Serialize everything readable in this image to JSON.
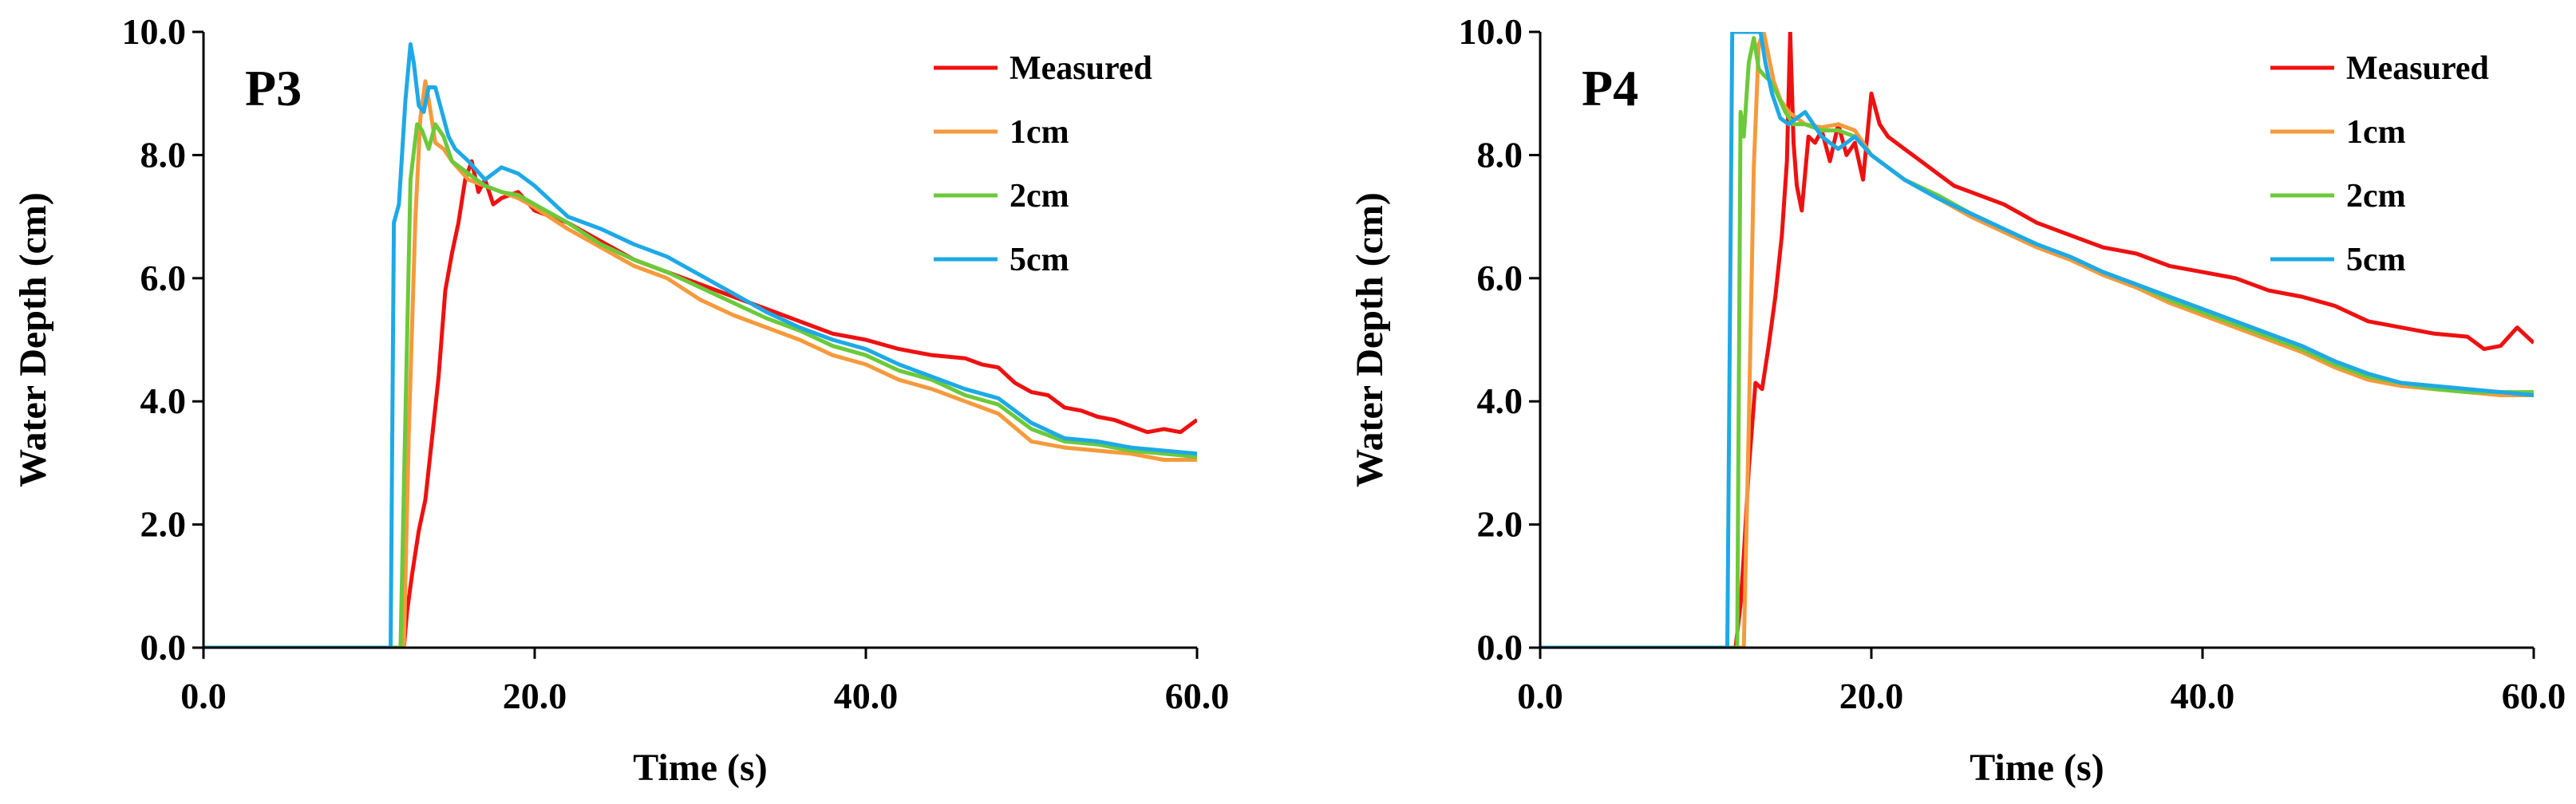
{
  "chart_data": [
    {
      "type": "line",
      "title": "P3",
      "xlabel": "Time (s)",
      "ylabel": "Water Depth (cm)",
      "xlim": [
        0,
        60
      ],
      "ylim": [
        0,
        10
      ],
      "xticks": [
        "0.0",
        "20.0",
        "40.0",
        "60.0"
      ],
      "yticks": [
        "0.0",
        "2.0",
        "4.0",
        "6.0",
        "8.0",
        "10.0"
      ],
      "grid": false,
      "legend_position": "top-right",
      "series": [
        {
          "name": "Measured",
          "color": "#ee1111",
          "x": [
            0,
            11.5,
            12.1,
            12.3,
            12.6,
            13.0,
            13.4,
            13.8,
            14.2,
            14.6,
            15.0,
            15.4,
            15.8,
            16.2,
            16.6,
            17.0,
            17.5,
            18,
            19,
            20,
            21,
            22,
            24,
            26,
            28,
            30,
            32,
            34,
            36,
            38,
            40,
            42,
            44,
            46,
            47,
            48,
            49,
            50,
            51,
            52,
            53,
            54,
            55,
            56,
            57,
            58,
            59,
            60
          ],
          "y": [
            0,
            0,
            0,
            0.6,
            1.2,
            1.9,
            2.4,
            3.4,
            4.4,
            5.8,
            6.4,
            6.9,
            7.6,
            7.9,
            7.4,
            7.6,
            7.2,
            7.3,
            7.4,
            7.1,
            7.0,
            6.9,
            6.6,
            6.3,
            6.1,
            5.9,
            5.7,
            5.5,
            5.3,
            5.1,
            5.0,
            4.85,
            4.75,
            4.7,
            4.6,
            4.55,
            4.3,
            4.15,
            4.1,
            3.9,
            3.85,
            3.75,
            3.7,
            3.6,
            3.5,
            3.55,
            3.5,
            3.7
          ]
        },
        {
          "name": "1cm",
          "color": "#f59a3c",
          "x": [
            0,
            11.8,
            12.1,
            12.4,
            12.8,
            13.1,
            13.4,
            13.6,
            14.0,
            14.5,
            15,
            16,
            17,
            18,
            19,
            20,
            22,
            24,
            26,
            28,
            30,
            32,
            34,
            36,
            38,
            40,
            42,
            44,
            46,
            48,
            50,
            52,
            54,
            56,
            58,
            60
          ],
          "y": [
            0,
            0,
            0,
            3.5,
            7.0,
            8.6,
            9.2,
            8.9,
            8.2,
            8.1,
            7.9,
            7.6,
            7.5,
            7.4,
            7.3,
            7.15,
            6.8,
            6.5,
            6.2,
            6.0,
            5.65,
            5.4,
            5.2,
            5.0,
            4.75,
            4.6,
            4.35,
            4.2,
            4.0,
            3.8,
            3.35,
            3.25,
            3.2,
            3.15,
            3.05,
            3.05
          ]
        },
        {
          "name": "2cm",
          "color": "#6cc93a",
          "x": [
            0,
            11.6,
            11.9,
            12.2,
            12.5,
            12.9,
            13.2,
            13.6,
            14.0,
            14.5,
            15,
            16,
            17,
            18,
            19,
            20,
            22,
            24,
            26,
            28,
            30,
            32,
            34,
            36,
            38,
            40,
            42,
            44,
            46,
            48,
            50,
            52,
            54,
            56,
            58,
            60
          ],
          "y": [
            0,
            0,
            0,
            3.8,
            7.6,
            8.5,
            8.4,
            8.1,
            8.5,
            8.3,
            7.9,
            7.7,
            7.5,
            7.4,
            7.35,
            7.2,
            6.9,
            6.55,
            6.3,
            6.1,
            5.85,
            5.6,
            5.35,
            5.15,
            4.9,
            4.75,
            4.5,
            4.35,
            4.1,
            3.95,
            3.55,
            3.35,
            3.3,
            3.2,
            3.15,
            3.1
          ]
        },
        {
          "name": "5cm",
          "color": "#1ea9e6",
          "x": [
            0,
            11.3,
            11.5,
            11.8,
            12.2,
            12.5,
            12.7,
            13.0,
            13.3,
            13.6,
            14.0,
            14.4,
            14.8,
            15.2,
            16,
            17,
            18,
            19,
            20,
            22,
            24,
            26,
            28,
            30,
            32,
            34,
            36,
            38,
            40,
            42,
            44,
            46,
            48,
            50,
            52,
            54,
            56,
            58,
            60
          ],
          "y": [
            0,
            0,
            6.9,
            7.2,
            8.9,
            9.8,
            9.5,
            8.8,
            8.7,
            9.1,
            9.1,
            8.7,
            8.3,
            8.1,
            7.9,
            7.6,
            7.8,
            7.7,
            7.5,
            7.0,
            6.8,
            6.55,
            6.35,
            6.05,
            5.75,
            5.45,
            5.2,
            5.0,
            4.85,
            4.6,
            4.4,
            4.2,
            4.05,
            3.65,
            3.4,
            3.35,
            3.25,
            3.2,
            3.15
          ]
        }
      ]
    },
    {
      "type": "line",
      "title": "P4",
      "xlabel": "Time (s)",
      "ylabel": "Water Depth (cm)",
      "xlim": [
        0,
        60
      ],
      "ylim": [
        0,
        10
      ],
      "xticks": [
        "0.0",
        "20.0",
        "40.0",
        "60.0"
      ],
      "yticks": [
        "0.0",
        "2.0",
        "4.0",
        "6.0",
        "8.0",
        "10.0"
      ],
      "grid": false,
      "legend_position": "top-right",
      "series": [
        {
          "name": "Measured",
          "color": "#ee1111",
          "x": [
            0,
            11.8,
            12.1,
            12.3,
            12.6,
            13.0,
            13.4,
            13.8,
            14.2,
            14.6,
            14.9,
            15.1,
            15.3,
            15.5,
            15.8,
            16.2,
            16.6,
            17,
            17.5,
            18,
            18.5,
            19,
            19.5,
            20,
            20.5,
            21,
            22,
            23,
            24,
            25,
            26,
            28,
            30,
            32,
            34,
            36,
            38,
            40,
            42,
            44,
            46,
            48,
            50,
            52,
            54,
            56,
            57,
            58,
            59,
            60
          ],
          "y": [
            0,
            0,
            0.7,
            1.5,
            2.9,
            4.3,
            4.2,
            4.9,
            5.7,
            6.7,
            7.9,
            10,
            8.2,
            7.5,
            7.1,
            8.3,
            8.2,
            8.4,
            7.9,
            8.5,
            8.0,
            8.2,
            7.6,
            9.0,
            8.5,
            8.3,
            8.1,
            7.9,
            7.7,
            7.5,
            7.4,
            7.2,
            6.9,
            6.7,
            6.5,
            6.4,
            6.2,
            6.1,
            6.0,
            5.8,
            5.7,
            5.55,
            5.3,
            5.2,
            5.1,
            5.05,
            4.85,
            4.9,
            5.2,
            4.95
          ]
        },
        {
          "name": "1cm",
          "color": "#f59a3c",
          "x": [
            0,
            12.0,
            12.3,
            12.6,
            12.9,
            13.2,
            13.5,
            13.8,
            14.1,
            14.5,
            15,
            16,
            17,
            18,
            19,
            20,
            22,
            24,
            26,
            28,
            30,
            32,
            34,
            36,
            38,
            40,
            42,
            44,
            46,
            48,
            50,
            52,
            54,
            56,
            58,
            60
          ],
          "y": [
            0,
            0,
            0,
            3.6,
            7.8,
            9.8,
            10.0,
            9.6,
            9.2,
            8.9,
            8.7,
            8.5,
            8.45,
            8.5,
            8.4,
            8.0,
            7.6,
            7.3,
            7.0,
            6.75,
            6.5,
            6.3,
            6.05,
            5.85,
            5.6,
            5.4,
            5.2,
            5.0,
            4.8,
            4.55,
            4.35,
            4.25,
            4.2,
            4.15,
            4.1,
            4.1
          ]
        },
        {
          "name": "2cm",
          "color": "#6cc93a",
          "x": [
            0,
            11.7,
            11.9,
            12.1,
            12.3,
            12.6,
            12.9,
            13.2,
            13.5,
            13.9,
            14.3,
            14.8,
            15.3,
            16,
            17,
            18,
            19,
            20,
            22,
            24,
            26,
            28,
            30,
            32,
            34,
            36,
            38,
            40,
            42,
            44,
            46,
            48,
            50,
            52,
            54,
            56,
            58,
            60
          ],
          "y": [
            0,
            0,
            0,
            8.7,
            8.3,
            9.5,
            9.9,
            9.4,
            9.3,
            9.2,
            9.0,
            8.7,
            8.5,
            8.5,
            8.4,
            8.4,
            8.3,
            8.0,
            7.6,
            7.35,
            7.05,
            6.8,
            6.55,
            6.35,
            6.1,
            5.9,
            5.65,
            5.45,
            5.25,
            5.05,
            4.85,
            4.6,
            4.4,
            4.3,
            4.2,
            4.15,
            4.15,
            4.15
          ]
        },
        {
          "name": "5cm",
          "color": "#1ea9e6",
          "x": [
            0,
            11.3,
            11.6,
            11.9,
            12.2,
            12.6,
            13.0,
            13.3,
            13.6,
            14.0,
            14.5,
            15.0,
            15.5,
            16,
            17,
            18,
            19,
            20,
            22,
            24,
            26,
            28,
            30,
            32,
            34,
            36,
            38,
            40,
            42,
            44,
            46,
            48,
            50,
            52,
            54,
            56,
            58,
            60
          ],
          "y": [
            0,
            0,
            10,
            10,
            10,
            10,
            10,
            10,
            9.5,
            9.0,
            8.6,
            8.5,
            8.6,
            8.7,
            8.3,
            8.1,
            8.3,
            8.0,
            7.6,
            7.3,
            7.05,
            6.8,
            6.55,
            6.35,
            6.1,
            5.9,
            5.7,
            5.5,
            5.3,
            5.1,
            4.9,
            4.65,
            4.45,
            4.3,
            4.25,
            4.2,
            4.15,
            4.1
          ]
        }
      ]
    }
  ]
}
